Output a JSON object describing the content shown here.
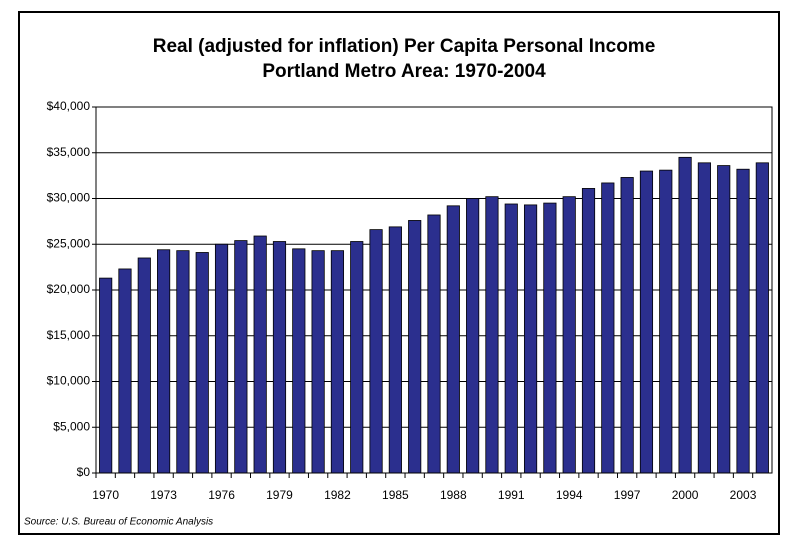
{
  "chart_data": {
    "type": "bar",
    "title": "Real (adjusted for inflation) Per Capita Personal Income",
    "subtitle": "Portland Metro Area: 1970-2004",
    "source": "Source: U.S. Bureau of Economic Analysis",
    "categories": [
      "1970",
      null,
      null,
      "1973",
      null,
      null,
      "1976",
      null,
      null,
      "1979",
      null,
      null,
      "1982",
      null,
      null,
      "1985",
      null,
      null,
      "1988",
      null,
      null,
      "1991",
      null,
      null,
      "1994",
      null,
      null,
      "1997",
      null,
      null,
      "2000",
      null,
      null,
      "2003",
      null
    ],
    "values": [
      21300,
      22300,
      23500,
      24400,
      24300,
      24100,
      25000,
      25400,
      25900,
      25300,
      24500,
      24300,
      24300,
      25300,
      26600,
      26900,
      27600,
      28200,
      29200,
      30000,
      30200,
      29400,
      29300,
      29500,
      30200,
      31100,
      31700,
      32300,
      33000,
      33100,
      34500,
      33900,
      33600,
      33200,
      33900
    ],
    "color": "#2b2f8e",
    "ylim": [
      0,
      40000
    ],
    "yticks": [
      {
        "value": 0,
        "label": "$0"
      },
      {
        "value": 5000,
        "label": "$5,000"
      },
      {
        "value": 10000,
        "label": "$10,000"
      },
      {
        "value": 15000,
        "label": "$15,000"
      },
      {
        "value": 20000,
        "label": "$20,000"
      },
      {
        "value": 25000,
        "label": "$25,000"
      },
      {
        "value": 30000,
        "label": "$30,000"
      },
      {
        "value": 35000,
        "label": "$35,000"
      },
      {
        "value": 40000,
        "label": "$40,000"
      }
    ],
    "grid": true
  }
}
